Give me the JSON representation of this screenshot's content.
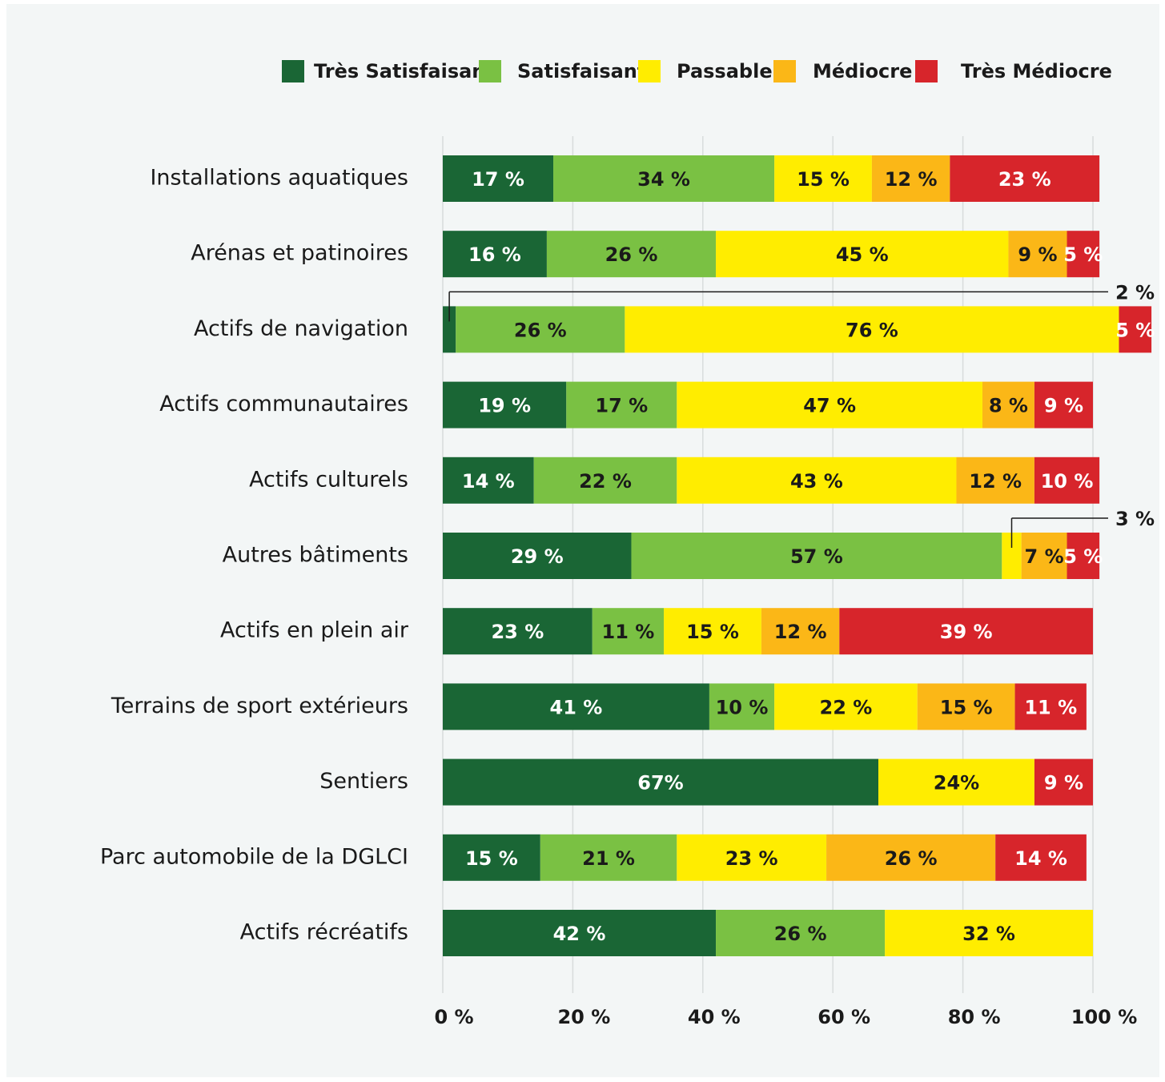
{
  "chart_data": {
    "type": "stacked_barh",
    "categories": [
      "Installations aquatiques",
      "Arénas et patinoires",
      "Actifs de navigation",
      "Actifs communautaires",
      "Actifs culturels",
      "Autres bâtiments",
      "Actifs en plein air",
      "Terrains de sport extérieurs",
      "Sentiers",
      "Parc automobile de la DGLCI",
      "Actifs récréatifs"
    ],
    "series": [
      {
        "name": "Très Satisfaisant",
        "color": "#1a6635",
        "values": [
          17,
          16,
          2,
          19,
          14,
          29,
          23,
          41,
          67,
          15,
          42
        ],
        "value_labels": [
          "17 %",
          "16 %",
          "2 %",
          "19 %",
          "14 %",
          "29 %",
          "23 %",
          "41 %",
          "67%",
          "15 %",
          "42 %"
        ]
      },
      {
        "name": "Satisfaisant",
        "color": "#7ac143",
        "values": [
          34,
          26,
          26,
          17,
          22,
          57,
          11,
          10,
          null,
          21,
          26
        ],
        "value_labels": [
          "34 %",
          "26 %",
          "26 %",
          "17 %",
          "22 %",
          "57 %",
          "11 %",
          "10 %",
          null,
          "21 %",
          "26 %"
        ]
      },
      {
        "name": "Passable",
        "color": "#ffed00",
        "values": [
          15,
          45,
          76,
          47,
          43,
          3,
          15,
          22,
          24,
          23,
          32
        ],
        "value_labels": [
          "15 %",
          "45 %",
          "76 %",
          "47 %",
          "43 %",
          "3  %",
          "15 %",
          "22 %",
          "24%",
          "23 %",
          "32 %"
        ]
      },
      {
        "name": "Médiocre",
        "color": "#fbb717",
        "values": [
          12,
          9,
          null,
          8,
          12,
          7,
          12,
          15,
          null,
          26,
          null
        ],
        "value_labels": [
          "12 %",
          "9 %",
          null,
          "8 %",
          "12 %",
          "7 %",
          "12 %",
          "15 %",
          null,
          "26 %",
          null
        ]
      },
      {
        "name": "Très Médiocre",
        "color": "#d7252b",
        "values": [
          23,
          5,
          5,
          9,
          10,
          5,
          39,
          11,
          9,
          14,
          null
        ],
        "value_labels": [
          "23 %",
          "5 %",
          "5 %",
          "9 %",
          "10 %",
          "5 %",
          "39 %",
          "11 %",
          "9 %",
          "14 %",
          null
        ]
      }
    ],
    "xlim": [
      0,
      100
    ],
    "xticks": [
      {
        "value": 0,
        "label": "0 %"
      },
      {
        "value": 20,
        "label": "20 %"
      },
      {
        "value": 40,
        "label": "40 %"
      },
      {
        "value": 60,
        "label": "60 %"
      },
      {
        "value": 80,
        "label": "80 %"
      },
      {
        "value": 100,
        "label": "100 %"
      }
    ],
    "grid": true,
    "legend": "top"
  }
}
